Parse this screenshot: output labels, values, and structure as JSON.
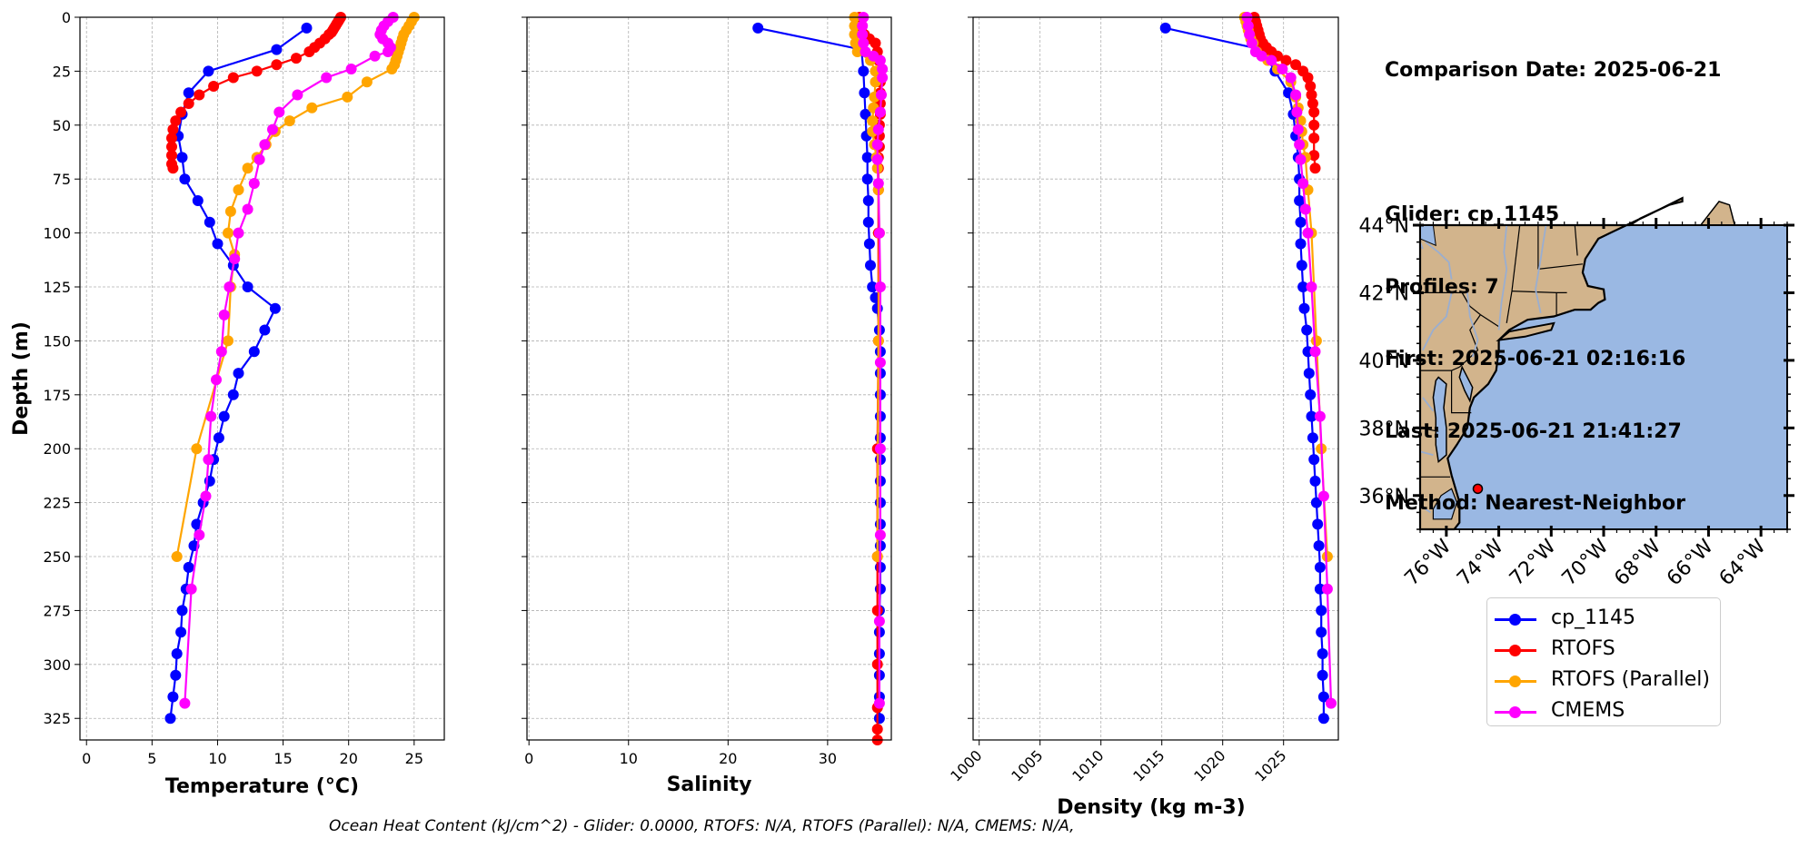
{
  "info": {
    "comparison_date": "Comparison Date: 2025-06-21",
    "glider": "Glider: cp_1145",
    "profiles": "Profiles: 7",
    "first": "First: 2025-06-21 02:16:16",
    "last": "Last: 2025-06-21 21:41:27",
    "method": "Method: Nearest-Neighbor"
  },
  "footer": "Ocean Heat Content (kJ/cm^2) - Glider: 0.0000,  RTOFS: N/A,  RTOFS (Parallel): N/A,  CMEMS: N/A,",
  "colors": {
    "glider": "#0000ff",
    "rtofs": "#ff0000",
    "rtofs_parallel": "#ffa500",
    "cmems": "#ff00ff",
    "raw": "#00ffff",
    "land": "#d2b48c",
    "ocean": "#9ab8e3"
  },
  "legend": [
    {
      "label": "cp_1145",
      "color": "#0000ff"
    },
    {
      "label": "RTOFS",
      "color": "#ff0000"
    },
    {
      "label": "RTOFS (Parallel)",
      "color": "#ffa500"
    },
    {
      "label": "CMEMS",
      "color": "#ff00ff"
    }
  ],
  "chart_data": [
    {
      "type": "line",
      "xlabel": "Temperature (°C)",
      "ylabel": "Depth (m)",
      "xlim": [
        -0.5,
        27.3
      ],
      "ylim": [
        335,
        0
      ],
      "xticks": [
        "0",
        "5",
        "10",
        "15",
        "20",
        "25"
      ],
      "yticks": [
        "0",
        "25",
        "50",
        "75",
        "100",
        "125",
        "150",
        "175",
        "200",
        "225",
        "250",
        "275",
        "300",
        "325"
      ],
      "grid": true,
      "series": [
        {
          "name": "cp_1145",
          "color": "#0000ff",
          "x": [
            16.8,
            14.5,
            9.3,
            7.8,
            7.3,
            7.0,
            7.3,
            7.5,
            8.5,
            9.4,
            10.0,
            11.2,
            12.3,
            14.4,
            13.6,
            12.8,
            11.6,
            11.2,
            10.5,
            10.1,
            9.7,
            9.4,
            8.9,
            8.4,
            8.2,
            7.8,
            7.6,
            7.3,
            7.2,
            6.9,
            6.8,
            6.6,
            6.4
          ],
          "y": [
            5,
            15,
            25,
            35,
            45,
            55,
            65,
            75,
            85,
            95,
            105,
            115,
            125,
            135,
            145,
            155,
            165,
            175,
            185,
            195,
            205,
            215,
            225,
            235,
            245,
            255,
            265,
            275,
            285,
            295,
            305,
            315,
            325
          ]
        },
        {
          "name": "RTOFS",
          "color": "#ff0000",
          "x": [
            19.4,
            19.3,
            19.2,
            19.1,
            19.0,
            18.9,
            18.8,
            18.7,
            18.5,
            18.2,
            17.8,
            17.4,
            17.0,
            16.0,
            14.5,
            13.0,
            11.2,
            9.7,
            8.6,
            7.8,
            7.2,
            6.8,
            6.6,
            6.5,
            6.5,
            6.5,
            6.5,
            6.6
          ],
          "y": [
            0,
            1,
            2,
            3,
            4,
            5,
            6,
            7,
            8,
            10,
            12,
            14,
            16,
            19,
            22,
            25,
            28,
            32,
            36,
            40,
            44,
            48,
            52,
            56,
            60,
            64,
            68,
            70
          ]
        },
        {
          "name": "RTOFS (Parallel)",
          "color": "#ffa500",
          "x": [
            25.0,
            24.8,
            24.6,
            24.4,
            24.2,
            24.1,
            24.0,
            23.9,
            23.8,
            23.7,
            23.6,
            23.5,
            23.3,
            21.4,
            19.9,
            17.2,
            15.5,
            14.4,
            13.7,
            13.0,
            12.3,
            11.6,
            11.0,
            10.8,
            11.3,
            11.0,
            10.8,
            8.4,
            6.9
          ],
          "y": [
            0,
            2,
            4,
            6,
            8,
            10,
            12,
            14,
            16,
            18,
            20,
            22,
            24,
            30,
            37,
            42,
            48,
            53,
            59,
            65,
            70,
            80,
            90,
            100,
            110,
            125,
            150,
            200,
            250
          ]
        },
        {
          "name": "CMEMS",
          "color": "#ff00ff",
          "x": [
            23.4,
            23.0,
            22.7,
            22.5,
            22.4,
            22.6,
            23.0,
            23.2,
            23.0,
            22.0,
            20.2,
            18.3,
            16.1,
            14.7,
            14.2,
            13.6,
            13.2,
            12.8,
            12.3,
            11.6,
            11.3,
            10.9,
            10.5,
            10.3,
            9.9,
            9.5,
            9.3,
            9.1,
            8.6,
            8.0,
            7.5
          ],
          "y": [
            0,
            2,
            4,
            6,
            8,
            10,
            12,
            14,
            16,
            18,
            24,
            28,
            36,
            44,
            52,
            59,
            66,
            77,
            89,
            100,
            112,
            125,
            138,
            155,
            168,
            185,
            205,
            222,
            240,
            265,
            318
          ]
        }
      ]
    },
    {
      "type": "line",
      "xlabel": "Salinity",
      "xlim": [
        -0.2,
        36.4
      ],
      "ylim": [
        335,
        0
      ],
      "xticks": [
        "0",
        "10",
        "20",
        "30"
      ],
      "grid": true,
      "series": [
        {
          "name": "cp_1145",
          "color": "#0000ff",
          "x": [
            23.0,
            33.4,
            33.6,
            33.7,
            33.8,
            33.9,
            34.0,
            34.0,
            34.1,
            34.1,
            34.2,
            34.3,
            34.5,
            34.8,
            35.0,
            35.2,
            35.3,
            35.3,
            35.3,
            35.3,
            35.3,
            35.3,
            35.3,
            35.3,
            35.3,
            35.3,
            35.3,
            35.3,
            35.2,
            35.2,
            35.2,
            35.2,
            35.2,
            35.2
          ],
          "y": [
            5,
            15,
            25,
            35,
            45,
            55,
            65,
            75,
            85,
            95,
            105,
            115,
            125,
            130,
            135,
            145,
            155,
            165,
            175,
            185,
            195,
            205,
            215,
            225,
            235,
            245,
            255,
            265,
            275,
            285,
            295,
            305,
            315,
            325
          ]
        },
        {
          "name": "RTOFS",
          "color": "#ff0000",
          "x": [
            33.2,
            33.1,
            33.2,
            33.4,
            33.7,
            34.2,
            34.8,
            35.0,
            35.1,
            35.2,
            35.3,
            35.3,
            35.3,
            35.3,
            35.2,
            35.2,
            35.2,
            35.1,
            35.1,
            35.1,
            35.1,
            35.1,
            35.0,
            35.0,
            35.0,
            35.0,
            35.0,
            35.0,
            35.0
          ],
          "y": [
            0,
            2,
            4,
            6,
            8,
            10,
            12,
            16,
            20,
            25,
            30,
            35,
            40,
            45,
            50,
            55,
            60,
            65,
            70,
            80,
            100,
            150,
            200,
            250,
            275,
            300,
            320,
            330,
            335
          ]
        },
        {
          "name": "RTOFS (Parallel)",
          "color": "#ffa500",
          "x": [
            32.7,
            32.7,
            32.7,
            32.8,
            33.0,
            34.3,
            34.8,
            34.8,
            34.7,
            34.6,
            34.5,
            34.5,
            34.7,
            34.9,
            35.0,
            35.1,
            35.2,
            35.1,
            35.0
          ],
          "y": [
            0,
            4,
            8,
            12,
            16,
            20,
            25,
            30,
            37,
            42,
            48,
            53,
            59,
            65,
            70,
            80,
            100,
            150,
            250
          ]
        },
        {
          "name": "CMEMS",
          "color": "#ff00ff",
          "x": [
            33.6,
            33.5,
            33.5,
            33.6,
            33.8,
            34.6,
            35.3,
            35.5,
            35.5,
            35.4,
            35.3,
            35.1,
            35.0,
            35.0,
            35.1,
            35.2,
            35.3,
            35.3,
            35.3,
            35.3,
            35.2,
            35.2
          ],
          "y": [
            0,
            4,
            8,
            12,
            16,
            18,
            20,
            24,
            28,
            36,
            44,
            52,
            59,
            66,
            77,
            100,
            125,
            160,
            200,
            240,
            280,
            318
          ]
        }
      ]
    },
    {
      "type": "line",
      "xlabel": "Density (kg m-3)",
      "xlim": [
        999.5,
        1029.5
      ],
      "ylim": [
        335,
        0
      ],
      "xticks": [
        "1000",
        "1005",
        "1010",
        "1015",
        "1020",
        "1025"
      ],
      "grid": true,
      "series": [
        {
          "name": "cp_1145",
          "color": "#0000ff",
          "x": [
            1015.3,
            1023.2,
            1024.3,
            1025.4,
            1025.8,
            1026.0,
            1026.2,
            1026.3,
            1026.3,
            1026.4,
            1026.4,
            1026.5,
            1026.6,
            1026.7,
            1026.9,
            1027.0,
            1027.1,
            1027.2,
            1027.3,
            1027.4,
            1027.5,
            1027.6,
            1027.7,
            1027.8,
            1027.9,
            1028.0,
            1028.0,
            1028.1,
            1028.1,
            1028.2,
            1028.2,
            1028.3,
            1028.3
          ],
          "y": [
            5,
            15,
            25,
            35,
            45,
            55,
            65,
            75,
            85,
            95,
            105,
            115,
            125,
            135,
            145,
            155,
            165,
            175,
            185,
            195,
            205,
            215,
            225,
            235,
            245,
            255,
            265,
            275,
            285,
            295,
            305,
            315,
            325
          ]
        },
        {
          "name": "RTOFS",
          "color": "#ff0000",
          "x": [
            1022.6,
            1022.7,
            1022.8,
            1022.9,
            1023.0,
            1023.1,
            1023.3,
            1023.6,
            1024.0,
            1024.5,
            1025.2,
            1026.0,
            1026.6,
            1027.0,
            1027.2,
            1027.3,
            1027.4,
            1027.5,
            1027.5,
            1027.5,
            1027.5,
            1027.6
          ],
          "y": [
            0,
            2,
            4,
            6,
            8,
            10,
            12,
            14,
            16,
            18,
            20,
            22,
            25,
            28,
            32,
            36,
            40,
            44,
            50,
            56,
            64,
            70
          ]
        },
        {
          "name": "RTOFS (Parallel)",
          "color": "#ffa500",
          "x": [
            1021.8,
            1021.9,
            1022.0,
            1022.1,
            1022.2,
            1022.3,
            1022.5,
            1022.8,
            1023.7,
            1024.5,
            1025.6,
            1026.0,
            1026.2,
            1026.4,
            1026.5,
            1026.6,
            1026.8,
            1027.0,
            1027.3,
            1027.7,
            1028.1,
            1028.6
          ],
          "y": [
            0,
            2,
            4,
            6,
            8,
            10,
            12,
            16,
            20,
            24,
            30,
            37,
            42,
            48,
            53,
            59,
            65,
            80,
            100,
            150,
            200,
            250
          ]
        },
        {
          "name": "CMEMS",
          "color": "#ff00ff",
          "x": [
            1022.0,
            1022.1,
            1022.2,
            1022.4,
            1022.7,
            1023.2,
            1024.0,
            1024.9,
            1025.6,
            1026.0,
            1026.1,
            1026.2,
            1026.3,
            1026.4,
            1026.6,
            1026.8,
            1027.0,
            1027.3,
            1027.6,
            1028.0,
            1028.3,
            1028.6,
            1028.9
          ],
          "y": [
            0,
            4,
            8,
            12,
            16,
            18,
            20,
            24,
            28,
            36,
            44,
            52,
            59,
            66,
            77,
            89,
            100,
            125,
            155,
            185,
            222,
            265,
            318
          ]
        }
      ]
    },
    {
      "type": "map",
      "lon_ticks": [
        "76°W",
        "74°W",
        "72°W",
        "70°W",
        "68°W",
        "66°W",
        "64°W"
      ],
      "lat_ticks": [
        "44°N",
        "42°N",
        "40°N",
        "38°N",
        "36°N"
      ],
      "lon_range": [
        -77,
        -63
      ],
      "lat_range": [
        35,
        44
      ],
      "glider_position": {
        "lon": -74.8,
        "lat": 36.2
      }
    }
  ]
}
